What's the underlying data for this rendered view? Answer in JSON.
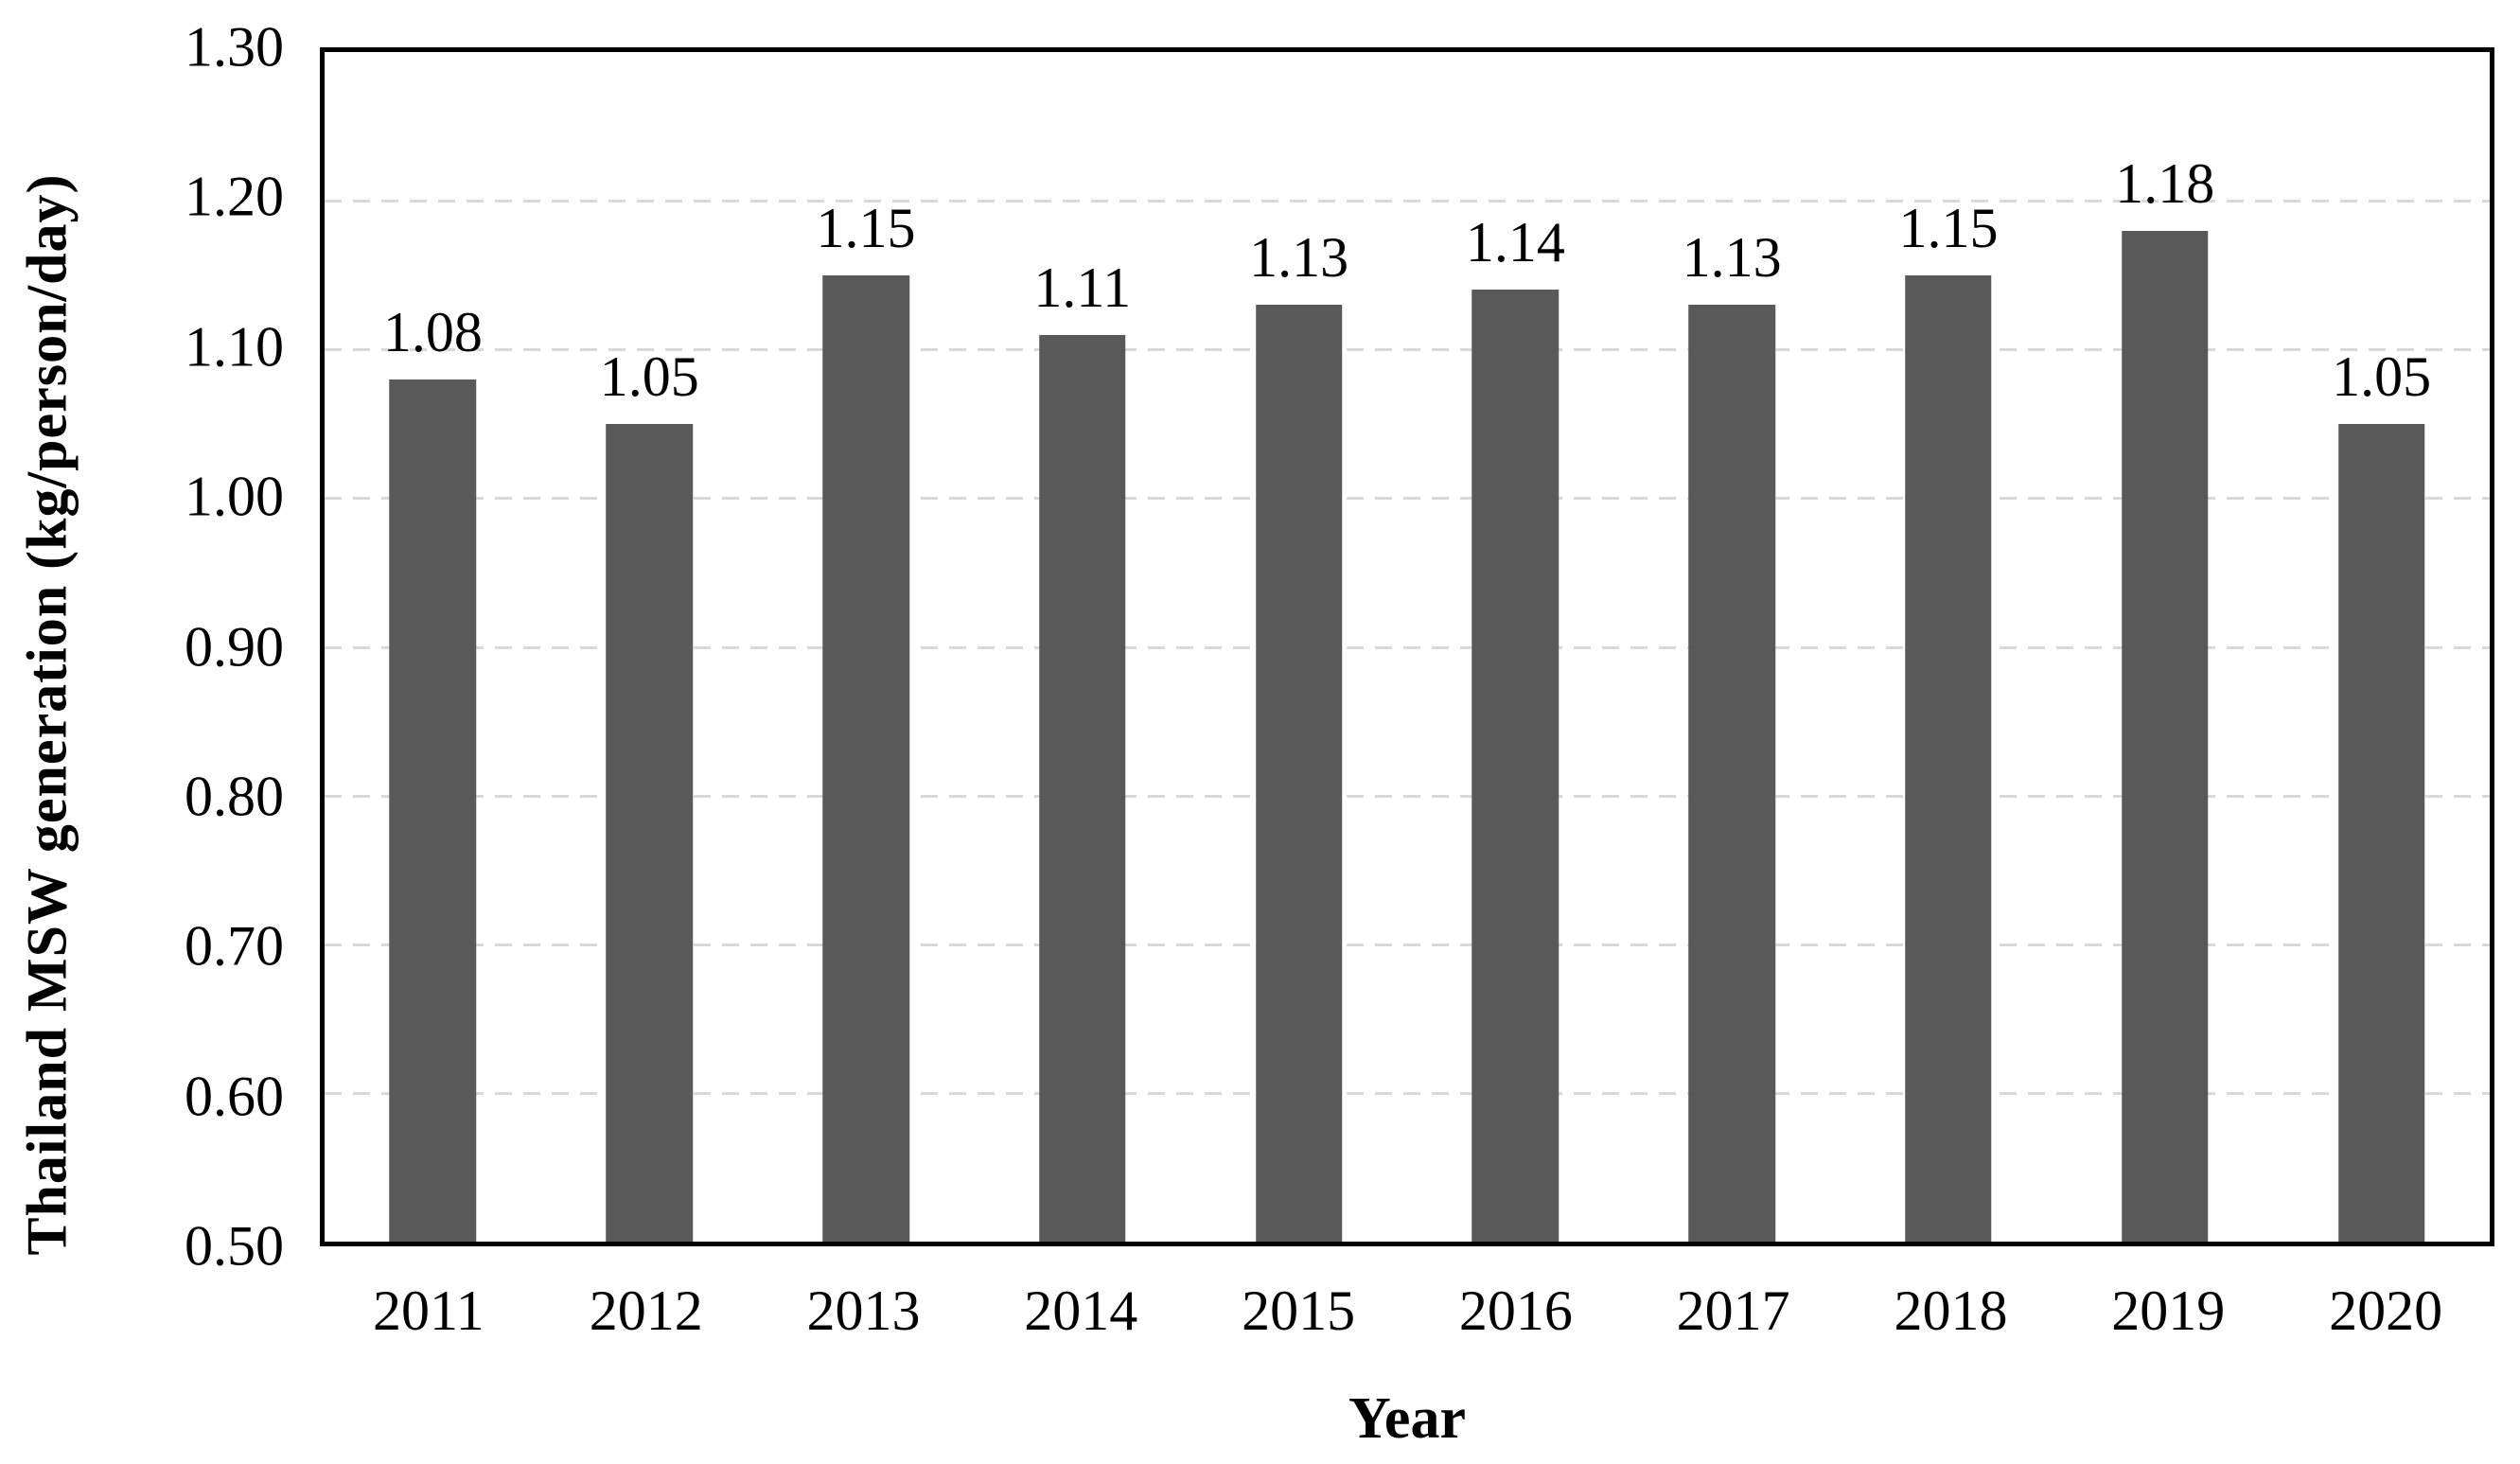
{
  "figure": {
    "background": "#ffffff",
    "bar_color": "#595959",
    "grid_color": "#d9d9d9",
    "axis_color": "#000000"
  },
  "chart_data": {
    "type": "bar",
    "title": "",
    "xlabel": "Year",
    "ylabel": "Thailand MSW generation (kg/person/day)",
    "categories": [
      "2011",
      "2012",
      "2013",
      "2014",
      "2015",
      "2016",
      "2017",
      "2018",
      "2019",
      "2020"
    ],
    "values": [
      1.08,
      1.05,
      1.15,
      1.11,
      1.13,
      1.14,
      1.13,
      1.15,
      1.18,
      1.05
    ],
    "data_labels": [
      "1.08",
      "1.05",
      "1.15",
      "1.11",
      "1.13",
      "1.14",
      "1.13",
      "1.15",
      "1.18",
      "1.05"
    ],
    "ylim": [
      0.5,
      1.3
    ],
    "ytick_step": 0.1,
    "yticks": [
      "1.30",
      "1.20",
      "1.10",
      "1.00",
      "0.90",
      "0.80",
      "0.70",
      "0.60",
      "0.50"
    ],
    "grid": "horizontal-dashed",
    "legend": "none",
    "bar_gap_ratio": 1.5
  }
}
